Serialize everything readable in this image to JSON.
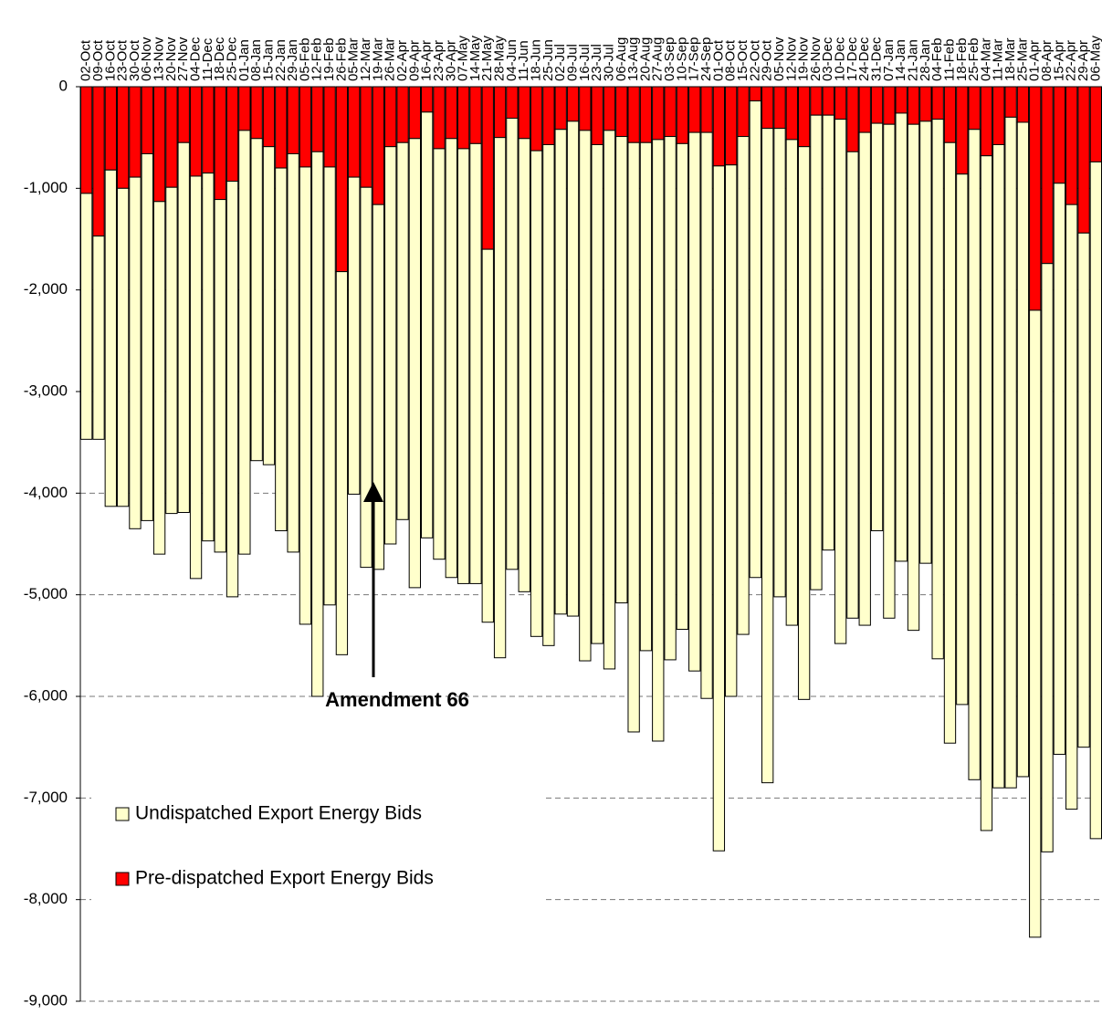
{
  "chart_data": {
    "type": "stacked_bar",
    "categories": [
      "02-Oct",
      "09-Oct",
      "16-Oct",
      "23-Oct",
      "30-Oct",
      "06-Nov",
      "13-Nov",
      "20-Nov",
      "27-Nov",
      "04-Dec",
      "11-Dec",
      "18-Dec",
      "25-Dec",
      "01-Jan",
      "08-Jan",
      "15-Jan",
      "22-Jan",
      "29-Jan",
      "05-Feb",
      "12-Feb",
      "19-Feb",
      "26-Feb",
      "05-Mar",
      "12-Mar",
      "19-Mar",
      "26-Mar",
      "02-Apr",
      "09-Apr",
      "16-Apr",
      "23-Apr",
      "30-Apr",
      "07-May",
      "14-May",
      "21-May",
      "28-May",
      "04-Jun",
      "11-Jun",
      "18-Jun",
      "25-Jun",
      "02-Jul",
      "09-Jul",
      "16-Jul",
      "23-Jul",
      "30-Jul",
      "06-Aug",
      "13-Aug",
      "20-Aug",
      "27-Aug",
      "03-Sep",
      "10-Sep",
      "17-Sep",
      "24-Sep",
      "01-Oct",
      "08-Oct",
      "15-Oct",
      "22-Oct",
      "29-Oct",
      "05-Nov",
      "12-Nov",
      "19-Nov",
      "26-Nov",
      "03-Dec",
      "10-Dec",
      "17-Dec",
      "24-Dec",
      "31-Dec",
      "07-Jan",
      "14-Jan",
      "21-Jan",
      "28-Jan",
      "04-Feb",
      "11-Feb",
      "18-Feb",
      "25-Feb",
      "04-Mar",
      "11-Mar",
      "18-Mar",
      "25-Mar",
      "01-Apr",
      "08-Apr",
      "15-Apr",
      "22-Apr",
      "29-Apr",
      "06-May"
    ],
    "series": [
      {
        "name": "Undispatched Export Energy Bids",
        "color": "#ffffcc",
        "values": [
          -2420,
          -2000,
          -3310,
          -3130,
          -3460,
          -3610,
          -3470,
          -3210,
          -3640,
          -3960,
          -3620,
          -3470,
          -4090,
          -4170,
          -3170,
          -3130,
          -3570,
          -3920,
          -4500,
          -5360,
          -4310,
          -3770,
          -3120,
          -3740,
          -3590,
          -3910,
          -3710,
          -4420,
          -4190,
          -4040,
          -4320,
          -4280,
          -4330,
          -3670,
          -5120,
          -4440,
          -4460,
          -4780,
          -4930,
          -4770,
          -4870,
          -5220,
          -4910,
          -5300,
          -4590,
          -5800,
          -5000,
          -5920,
          -5150,
          -4780,
          -5300,
          -5570,
          -6740,
          -5230,
          -4900,
          -4690,
          -6440,
          -4610,
          -4780,
          -5440,
          -4670,
          -4280,
          -5160,
          -4590,
          -4850,
          -4010,
          -4860,
          -4410,
          -4980,
          -4350,
          -5310,
          -5910,
          -5220,
          -6400,
          -6640,
          -6330,
          -6600,
          -6440,
          -6170,
          -5790,
          -5620,
          -5950,
          -5060,
          -6660
        ]
      },
      {
        "name": "Pre-dispatched Export Energy Bids",
        "color": "#ff0000",
        "values": [
          -1050,
          -1470,
          -820,
          -1000,
          -890,
          -660,
          -1130,
          -990,
          -550,
          -880,
          -850,
          -1110,
          -930,
          -430,
          -510,
          -590,
          -800,
          -660,
          -790,
          -640,
          -790,
          -1820,
          -890,
          -990,
          -1160,
          -590,
          -550,
          -510,
          -250,
          -610,
          -510,
          -610,
          -560,
          -1600,
          -500,
          -310,
          -510,
          -630,
          -570,
          -420,
          -340,
          -430,
          -570,
          -430,
          -490,
          -550,
          -550,
          -520,
          -490,
          -560,
          -450,
          -450,
          -780,
          -770,
          -490,
          -140,
          -410,
          -410,
          -520,
          -590,
          -280,
          -280,
          -320,
          -640,
          -450,
          -360,
          -370,
          -260,
          -370,
          -340,
          -320,
          -550,
          -860,
          -420,
          -680,
          -570,
          -300,
          -350,
          -2200,
          -1740,
          -950,
          -1160,
          -1440,
          -740
        ]
      }
    ],
    "ylim": [
      -9000,
      0
    ],
    "yticks": [
      0,
      {
        "value": -1000,
        "label": "-1,000"
      },
      {
        "value": -2000,
        "label": "-2,000"
      },
      {
        "value": -3000,
        "label": "-3,000"
      },
      {
        "value": -4000,
        "label": "-4,000"
      },
      {
        "value": -5000,
        "label": "-5,000"
      },
      {
        "value": -6000,
        "label": "-6,000"
      },
      {
        "value": -7000,
        "label": "-7,000"
      },
      {
        "value": -8000,
        "label": "-8,000"
      },
      {
        "value": -9000,
        "label": "-9,000"
      }
    ],
    "grid": true,
    "annotation": "Amendment 66"
  }
}
